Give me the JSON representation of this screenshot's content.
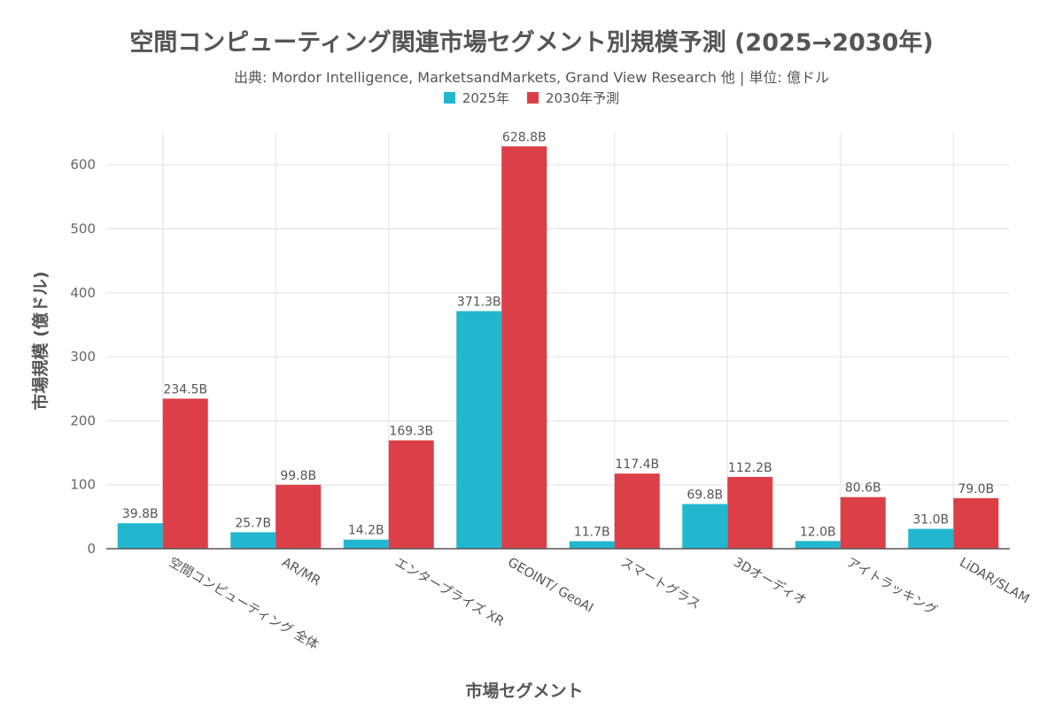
{
  "chart_data": {
    "type": "bar",
    "title": "空間コンピューティング関連市場セグメント別規模予測 (2025→2030年)",
    "subtitle": "出典: Mordor Intelligence, MarketsandMarkets, Grand View Research 他 | 単位: 億ドル",
    "xlabel": "市場セグメント",
    "ylabel": "市場規模 (億ドル)",
    "ylim": [
      0,
      650
    ],
    "yticks": [
      "0",
      "100",
      "200",
      "300",
      "400",
      "500",
      "600"
    ],
    "grid": true,
    "legend_position": "top-center",
    "categories": [
      "空間コンピューティング 全体",
      "AR/MR",
      "エンタープライズ XR",
      "GEOINT/ GeoAI",
      "スマートグラス",
      "3Dオーディオ",
      "アイトラッキング",
      "LiDAR/SLAM"
    ],
    "series": [
      {
        "name": "2025年",
        "color": "#22b7cf",
        "values": [
          39.8,
          25.7,
          14.2,
          371.3,
          11.7,
          69.8,
          12.0,
          31.0
        ],
        "labels": [
          "39.8B",
          "25.7B",
          "14.2B",
          "371.3B",
          "11.7B",
          "69.8B",
          "12.0B",
          "31.0B"
        ]
      },
      {
        "name": "2030年予測",
        "color": "#dc3f48",
        "values": [
          234.5,
          99.8,
          169.3,
          628.8,
          117.4,
          112.2,
          80.6,
          79.0
        ],
        "labels": [
          "234.5B",
          "99.8B",
          "169.3B",
          "628.8B",
          "117.4B",
          "112.2B",
          "80.6B",
          "79.0B"
        ]
      }
    ]
  }
}
